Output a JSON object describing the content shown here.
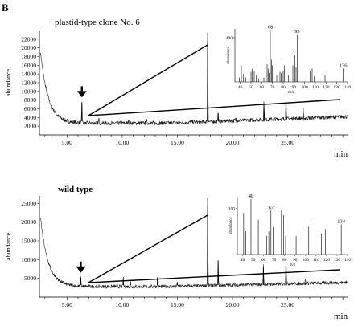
{
  "panel_label": "B",
  "chart_data": [
    {
      "type": "line",
      "title": "plastid-type clone No. 6",
      "xlabel": "min",
      "ylabel": "abundance",
      "xlim": [
        2.5,
        30.5
      ],
      "ylim": [
        0,
        24000
      ],
      "x_ticks": [
        5.0,
        10.0,
        15.0,
        20.0,
        25.0
      ],
      "x_tick_labels": [
        "5.00",
        "10.00",
        "15.00",
        "20.00",
        "25.00"
      ],
      "y_ticks": [
        2000,
        4000,
        6000,
        8000,
        10000,
        12000,
        14000,
        16000,
        18000,
        20000,
        22000
      ],
      "y_tick_labels": [
        "2000",
        "4000",
        "6000",
        "8000",
        "10000",
        "12000",
        "14000",
        "16000",
        "18000",
        "20000",
        "22000"
      ],
      "baseline": {
        "start_value": 19000,
        "plateau": 2700,
        "end_value": 4200
      },
      "peaks": [
        {
          "x": 6.35,
          "y": 7500,
          "marked": true
        },
        {
          "x": 7.9,
          "y": 3800
        },
        {
          "x": 10.6,
          "y": 3500
        },
        {
          "x": 12.2,
          "y": 3300
        },
        {
          "x": 14.6,
          "y": 3100
        },
        {
          "x": 17.75,
          "y": 23500
        },
        {
          "x": 18.7,
          "y": 5000
        },
        {
          "x": 20.3,
          "y": 3300
        },
        {
          "x": 22.85,
          "y": 6900
        },
        {
          "x": 24.85,
          "y": 8000
        },
        {
          "x": 26.4,
          "y": 4900
        }
      ],
      "inset": {
        "type": "bar",
        "xlabel": "m/z",
        "ylabel": "abundance",
        "xlim": [
          35,
          140
        ],
        "ylim": [
          0,
          480
        ],
        "x_ticks": [
          40,
          50,
          60,
          70,
          80,
          90,
          100,
          110,
          120,
          130,
          140
        ],
        "y_ticks": [
          400
        ],
        "y_tick_labels": [
          "400"
        ],
        "bars": [
          {
            "mz": 39,
            "v": 40
          },
          {
            "mz": 41,
            "v": 150
          },
          {
            "mz": 43,
            "v": 70
          },
          {
            "mz": 45,
            "v": 40
          },
          {
            "mz": 50,
            "v": 90
          },
          {
            "mz": 51,
            "v": 120
          },
          {
            "mz": 53,
            "v": 100
          },
          {
            "mz": 55,
            "v": 60
          },
          {
            "mz": 57,
            "v": 30
          },
          {
            "mz": 62,
            "v": 40
          },
          {
            "mz": 63,
            "v": 110
          },
          {
            "mz": 65,
            "v": 160
          },
          {
            "mz": 66,
            "v": 120
          },
          {
            "mz": 67,
            "v": 80
          },
          {
            "mz": 68,
            "v": 470,
            "label": "68"
          },
          {
            "mz": 69,
            "v": 200
          },
          {
            "mz": 70,
            "v": 150
          },
          {
            "mz": 74,
            "v": 60
          },
          {
            "mz": 77,
            "v": 90
          },
          {
            "mz": 78,
            "v": 80
          },
          {
            "mz": 79,
            "v": 200
          },
          {
            "mz": 80,
            "v": 100
          },
          {
            "mz": 81,
            "v": 150
          },
          {
            "mz": 85,
            "v": 60
          },
          {
            "mz": 89,
            "v": 150
          },
          {
            "mz": 91,
            "v": 240
          },
          {
            "mz": 92,
            "v": 130
          },
          {
            "mz": 93,
            "v": 430,
            "label": "93"
          },
          {
            "mz": 94,
            "v": 90
          },
          {
            "mz": 105,
            "v": 100
          },
          {
            "mz": 107,
            "v": 120
          },
          {
            "mz": 109,
            "v": 50
          },
          {
            "mz": 119,
            "v": 60
          },
          {
            "mz": 121,
            "v": 80
          },
          {
            "mz": 136,
            "v": 120,
            "label": "136"
          }
        ]
      }
    },
    {
      "type": "line",
      "title": "wild type",
      "xlabel": "min",
      "ylabel": "abundance",
      "xlim": [
        2.5,
        30.5
      ],
      "ylim": [
        0,
        27000
      ],
      "x_ticks": [
        5.0,
        10.0,
        15.0,
        20.0,
        25.0
      ],
      "x_tick_labels": [
        "5.00",
        "10.00",
        "15.00",
        "20.00",
        "25.00"
      ],
      "y_ticks": [
        5000,
        10000,
        15000,
        20000,
        25000
      ],
      "y_tick_labels": [
        "5000",
        "10000",
        "15000",
        "20000",
        "25000"
      ],
      "baseline": {
        "start_value": 21000,
        "plateau": 2800,
        "end_value": 3900
      },
      "peaks": [
        {
          "x": 6.25,
          "y": 5200,
          "marked": true
        },
        {
          "x": 9.55,
          "y": 3300
        },
        {
          "x": 10.1,
          "y": 5000
        },
        {
          "x": 10.75,
          "y": 4100
        },
        {
          "x": 13.2,
          "y": 5200
        },
        {
          "x": 15.0,
          "y": 3800
        },
        {
          "x": 17.75,
          "y": 26500
        },
        {
          "x": 18.7,
          "y": 9800
        },
        {
          "x": 22.8,
          "y": 8000
        },
        {
          "x": 24.85,
          "y": 10000
        },
        {
          "x": 26.6,
          "y": 3800
        }
      ],
      "inset": {
        "type": "bar",
        "xlabel": "m/z",
        "ylabel": "abundance",
        "xlim": [
          35,
          140
        ],
        "ylim": [
          0,
          125
        ],
        "x_ticks": [
          40,
          50,
          60,
          70,
          80,
          90,
          100,
          110,
          120,
          130,
          140
        ],
        "y_ticks": [
          100
        ],
        "y_tick_labels": [
          "100"
        ],
        "bars": [
          {
            "mz": 41,
            "v": 90
          },
          {
            "mz": 43,
            "v": 50
          },
          {
            "mz": 48,
            "v": 120,
            "label": "48"
          },
          {
            "mz": 50,
            "v": 30
          },
          {
            "mz": 55,
            "v": 75
          },
          {
            "mz": 63,
            "v": 40
          },
          {
            "mz": 65,
            "v": 50
          },
          {
            "mz": 67,
            "v": 95,
            "label": "67"
          },
          {
            "mz": 69,
            "v": 60
          },
          {
            "mz": 77,
            "v": 95
          },
          {
            "mz": 79,
            "v": 85
          },
          {
            "mz": 81,
            "v": 40
          },
          {
            "mz": 91,
            "v": 40
          },
          {
            "mz": 93,
            "v": 25
          },
          {
            "mz": 103,
            "v": 60
          },
          {
            "mz": 105,
            "v": 65
          },
          {
            "mz": 115,
            "v": 45
          },
          {
            "mz": 119,
            "v": 55
          },
          {
            "mz": 134,
            "v": 65,
            "label": "134"
          }
        ]
      }
    }
  ]
}
